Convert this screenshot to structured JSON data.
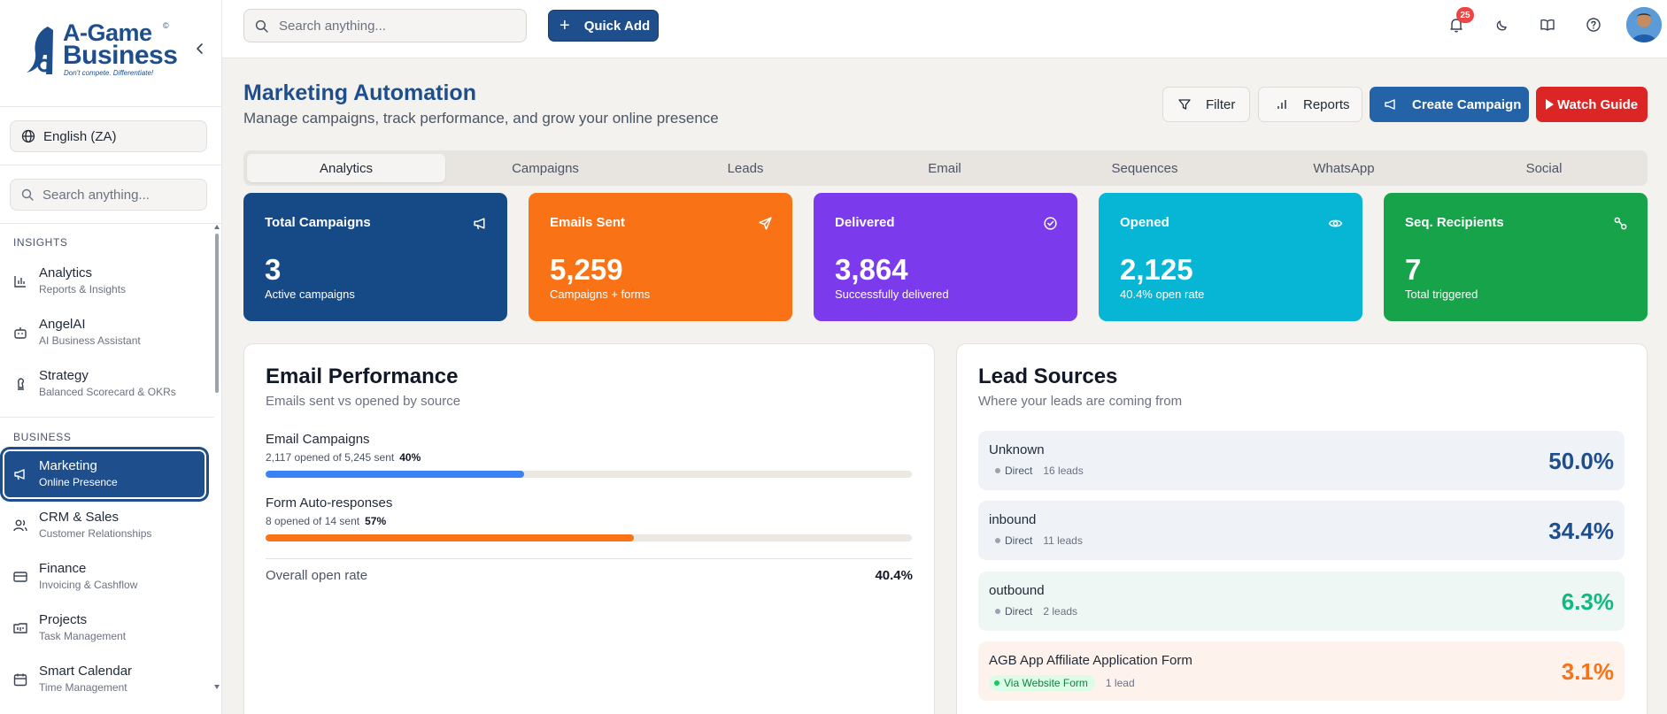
{
  "brand": {
    "name_line1": "A-Game",
    "name_line2": "Business",
    "registered": "©",
    "tagline": "Don't compete. Differentiate!"
  },
  "sidebar": {
    "language": "English (ZA)",
    "search_placeholder": "Search anything...",
    "sections": [
      {
        "title": "INSIGHTS",
        "items": [
          {
            "label": "Analytics",
            "sub": "Reports & Insights",
            "icon": "bar-chart-icon"
          },
          {
            "label": "AngelAI",
            "sub": "AI Business Assistant",
            "icon": "bot-icon"
          },
          {
            "label": "Strategy",
            "sub": "Balanced Scorecard & OKRs",
            "icon": "chess-piece-icon"
          }
        ]
      },
      {
        "title": "BUSINESS",
        "items": [
          {
            "label": "Marketing",
            "sub": "Online Presence",
            "icon": "megaphone-icon",
            "active": true
          },
          {
            "label": "CRM & Sales",
            "sub": "Customer Relationships",
            "icon": "users-icon"
          },
          {
            "label": "Finance",
            "sub": "Invoicing & Cashflow",
            "icon": "credit-card-icon"
          },
          {
            "label": "Projects",
            "sub": "Task Management",
            "icon": "kanban-icon"
          },
          {
            "label": "Smart Calendar",
            "sub": "Time Management",
            "icon": "calendar-icon"
          }
        ]
      }
    ]
  },
  "topbar": {
    "search_placeholder": "Search anything...",
    "quick_add_label": "Quick Add",
    "notification_count": "25"
  },
  "header": {
    "title": "Marketing Automation",
    "subtitle": "Manage campaigns, track performance, and grow your online presence",
    "filter_label": "Filter",
    "reports_label": "Reports",
    "create_label": "Create Campaign",
    "guide_label": "Watch Guide"
  },
  "tabs": [
    "Analytics",
    "Campaigns",
    "Leads",
    "Email",
    "Sequences",
    "WhatsApp",
    "Social"
  ],
  "active_tab": "Analytics",
  "stats": [
    {
      "label": "Total Campaigns",
      "value": "3",
      "sub": "Active campaigns",
      "color": "#164a87",
      "icon": "megaphone-icon"
    },
    {
      "label": "Emails Sent",
      "value": "5,259",
      "sub": "Campaigns + forms",
      "color": "#f97316",
      "icon": "send-icon"
    },
    {
      "label": "Delivered",
      "value": "3,864",
      "sub": "Successfully delivered",
      "color": "#7c3aed",
      "icon": "check-circle-icon"
    },
    {
      "label": "Opened",
      "value": "2,125",
      "sub": "40.4% open rate",
      "color": "#06b6d4",
      "icon": "eye-icon"
    },
    {
      "label": "Seq. Recipients",
      "value": "7",
      "sub": "Total triggered",
      "color": "#16a34a",
      "icon": "workflow-icon"
    }
  ],
  "email_performance": {
    "title": "Email Performance",
    "subtitle": "Emails sent vs opened by source",
    "rows": [
      {
        "name": "Email Campaigns",
        "detail": "2,117 opened of 5,245 sent",
        "pct_label": "40%",
        "pct": 40,
        "color": "#3b82f6"
      },
      {
        "name": "Form Auto-responses",
        "detail": "8 opened of 14 sent",
        "pct_label": "57%",
        "pct": 57,
        "color": "#f97316"
      }
    ],
    "overall_label": "Overall open rate",
    "overall_value": "40.4%"
  },
  "lead_sources": {
    "title": "Lead Sources",
    "subtitle": "Where your leads are coming from",
    "rows": [
      {
        "name": "Unknown",
        "channel": "Direct",
        "count": "16 leads",
        "pct": "50.0%",
        "bg": "#eff3f8",
        "pct_color": "#1e4f8c"
      },
      {
        "name": "inbound",
        "channel": "Direct",
        "count": "11 leads",
        "pct": "34.4%",
        "bg": "#eff3f8",
        "pct_color": "#1e4f8c"
      },
      {
        "name": "outbound",
        "channel": "Direct",
        "count": "2 leads",
        "pct": "6.3%",
        "bg": "#eef7f3",
        "pct_color": "#10b981"
      },
      {
        "name": "AGB App Affiliate Application Form",
        "channel": "Via Website Form",
        "count": "1 lead",
        "pct": "3.1%",
        "bg": "#fdf3ec",
        "pct_color": "#f97316"
      }
    ]
  }
}
